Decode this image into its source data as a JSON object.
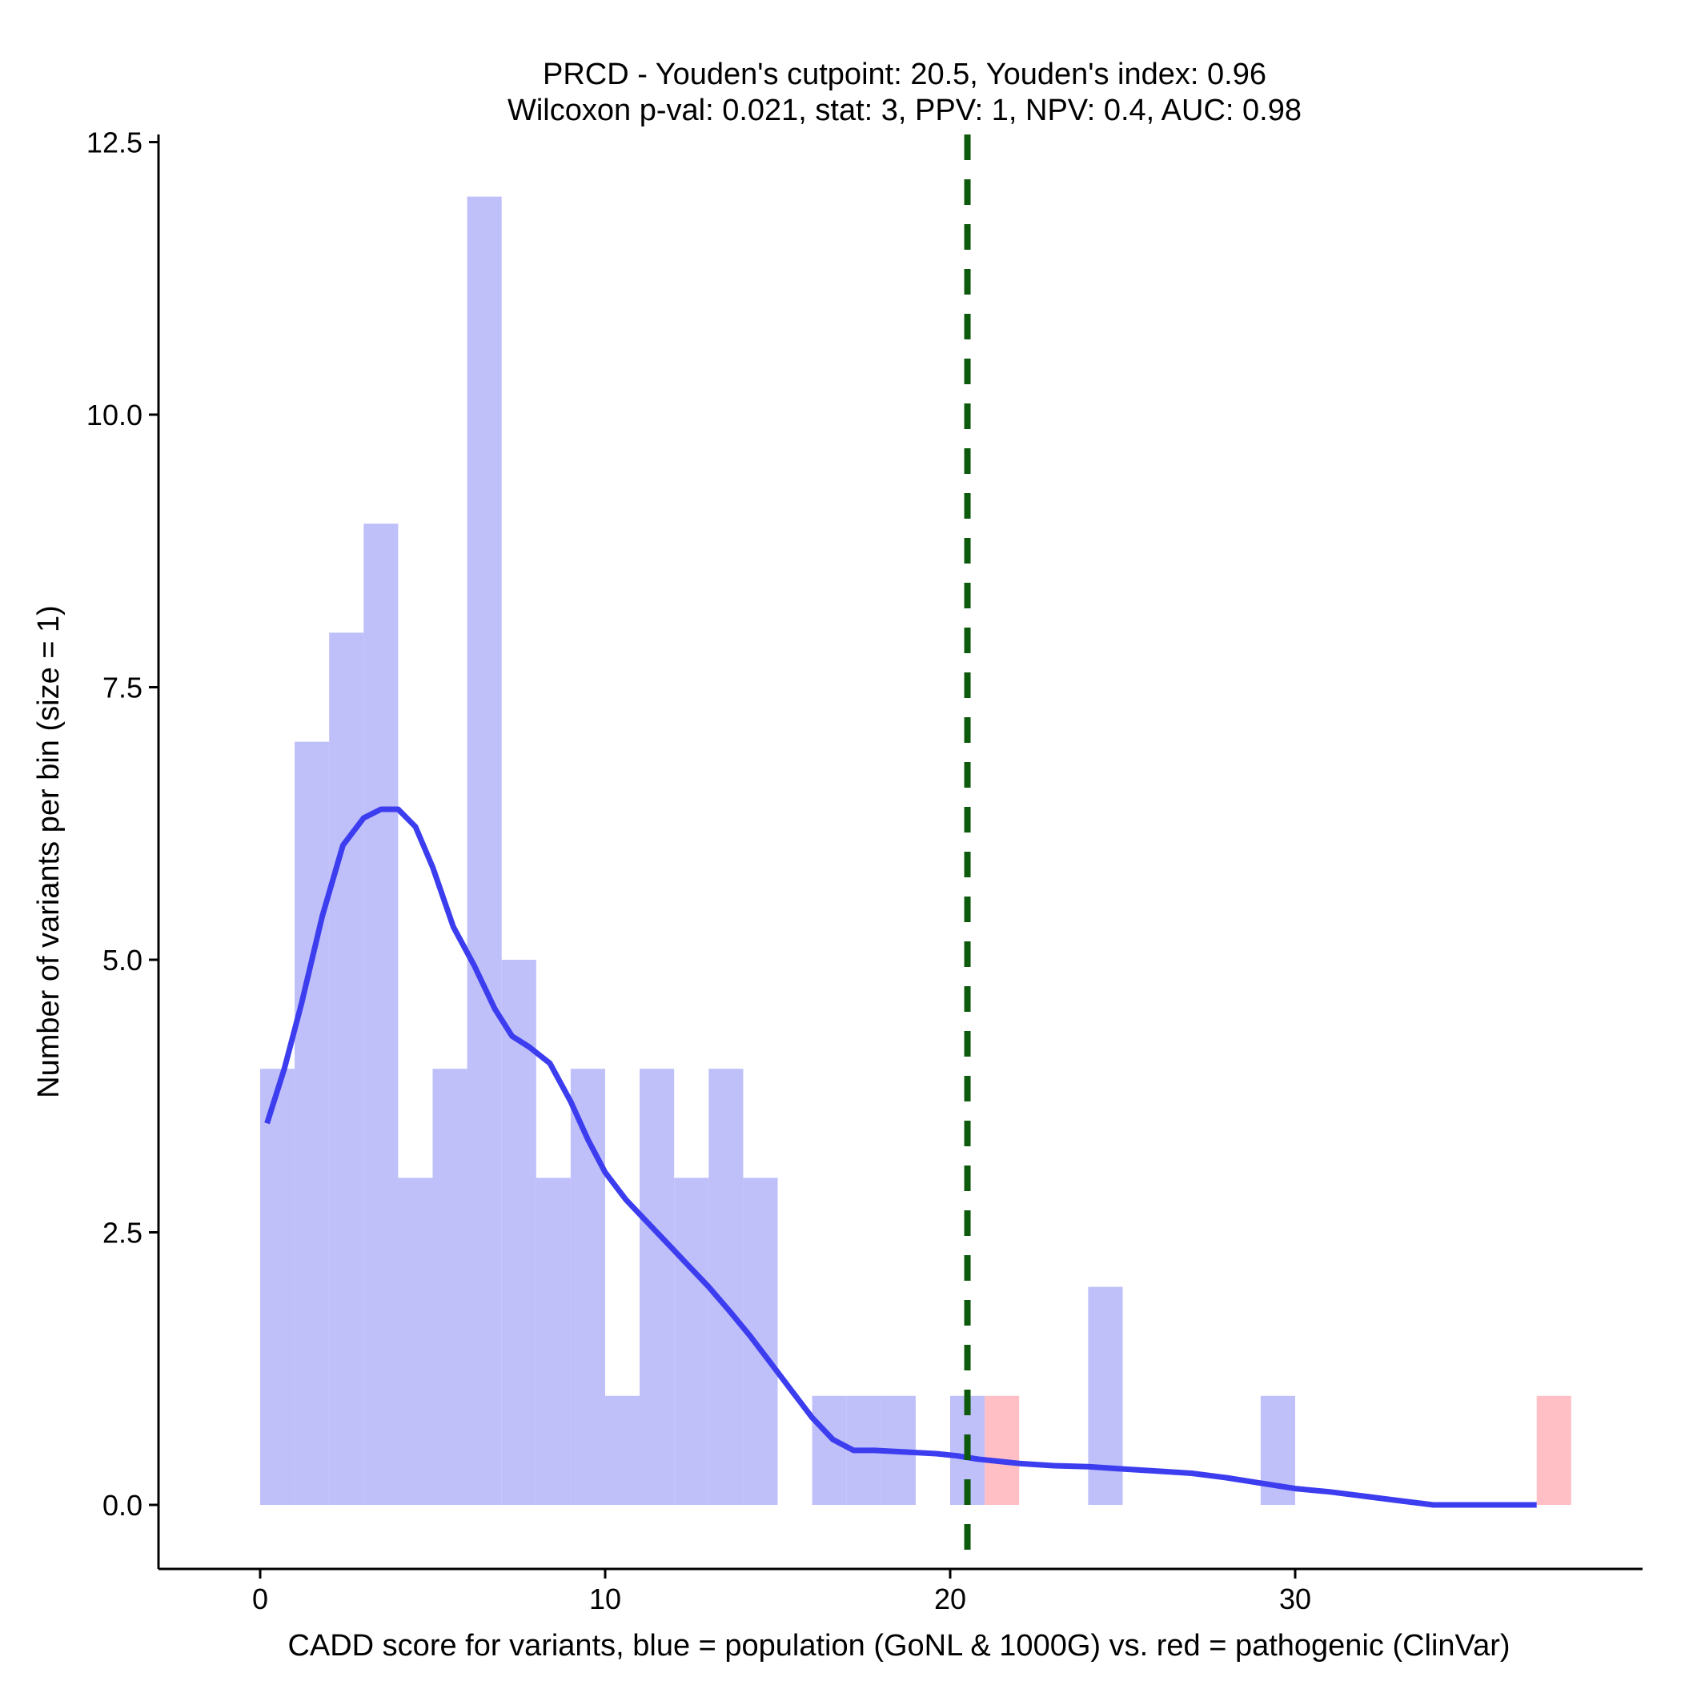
{
  "chart_data": {
    "type": "bar",
    "title": "PRCD - Youden's cutpoint: 20.5, Youden's index: 0.96",
    "subtitle": "Wilcoxon p-val: 0.021, stat: 3, PPV: 1, NPV: 0.4, AUC: 0.98",
    "xlabel": "CADD score for variants, blue = population (GoNL & 1000G) vs. red = pathogenic (ClinVar)",
    "ylabel": "Number of variants per bin (size = 1)",
    "xlim": [
      -3,
      40
    ],
    "ylim": [
      -0.6,
      12.6
    ],
    "x_ticks": [
      0,
      10,
      20,
      30
    ],
    "x_tick_labels": [
      "0",
      "10",
      "20",
      "30"
    ],
    "y_ticks": [
      0,
      2.5,
      5,
      7.5,
      10,
      12.5
    ],
    "y_tick_labels": [
      "0.0",
      "2.5",
      "5.0",
      "7.5",
      "10.0",
      "12.5"
    ],
    "bin_width": 1,
    "series": [
      {
        "name": "population (GoNL & 1000G)",
        "color": "#bfbffa",
        "bin_starts": [
          0,
          1,
          2,
          3,
          4,
          5,
          6,
          7,
          8,
          9,
          10,
          11,
          12,
          13,
          14,
          16,
          17,
          18,
          20,
          24,
          29
        ],
        "counts": [
          4,
          7,
          8,
          9,
          3,
          4,
          12,
          5,
          3,
          4,
          1,
          4,
          3,
          4,
          3,
          1,
          1,
          1,
          1,
          2,
          1
        ]
      },
      {
        "name": "pathogenic (ClinVar)",
        "color": "#ffbfc4",
        "bin_starts": [
          21,
          37
        ],
        "counts": [
          1,
          1
        ]
      }
    ],
    "density_curve": {
      "name": "population density",
      "color": "#3d3df0",
      "x": [
        0.2,
        0.7,
        1.2,
        1.8,
        2.4,
        3.0,
        3.5,
        4.0,
        4.5,
        5.0,
        5.6,
        6.2,
        6.8,
        7.3,
        7.8,
        8.4,
        9.0,
        9.5,
        10.0,
        10.6,
        11.2,
        11.8,
        12.4,
        13.0,
        13.6,
        14.2,
        14.8,
        15.4,
        16.0,
        16.6,
        17.2,
        17.8,
        18.4,
        19.0,
        19.6,
        20.2,
        20.8,
        21.4,
        22.0,
        23.0,
        24.0,
        25.0,
        26.0,
        27.0,
        28.0,
        29.0,
        30.0,
        31.0,
        32.0,
        33.0,
        34.0,
        35.0,
        36.0,
        37.0
      ],
      "y": [
        3.5,
        4.0,
        4.6,
        5.4,
        6.05,
        6.3,
        6.38,
        6.38,
        6.22,
        5.85,
        5.3,
        4.95,
        4.55,
        4.3,
        4.2,
        4.05,
        3.7,
        3.35,
        3.05,
        2.8,
        2.6,
        2.4,
        2.2,
        2.0,
        1.78,
        1.55,
        1.3,
        1.05,
        0.8,
        0.6,
        0.5,
        0.5,
        0.49,
        0.48,
        0.47,
        0.45,
        0.42,
        0.4,
        0.38,
        0.36,
        0.35,
        0.33,
        0.31,
        0.29,
        0.25,
        0.2,
        0.15,
        0.12,
        0.08,
        0.04,
        0.0,
        0.0,
        0.0,
        0.0
      ]
    },
    "cutpoint": {
      "value": 20.5,
      "color": "#0d5a0d",
      "style": "dashed"
    },
    "grid": false,
    "legend": "none"
  }
}
